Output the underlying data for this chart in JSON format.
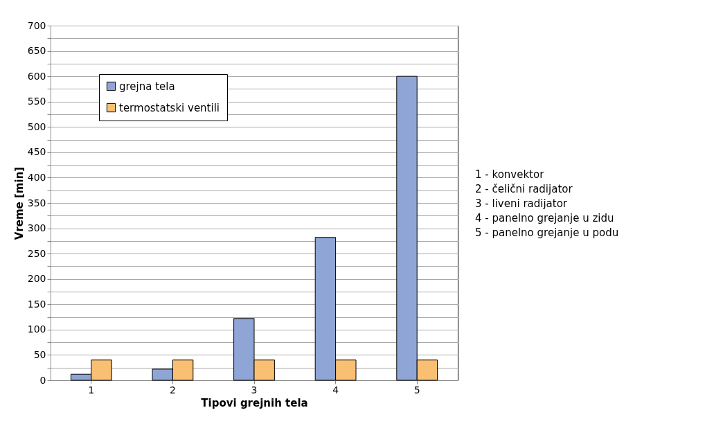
{
  "chart_data": {
    "type": "bar",
    "xlabel": "Tipovi grejnih tela",
    "ylabel": "Vreme [min]",
    "categories": [
      "1",
      "2",
      "3",
      "4",
      "5"
    ],
    "series": [
      {
        "name": "grejna tela",
        "color": "#8ea5d6",
        "values": [
          12,
          22,
          122,
          282,
          600
        ]
      },
      {
        "name": "termostatski ventili",
        "color": "#f9c073",
        "values": [
          40,
          40,
          40,
          40,
          40
        ]
      }
    ],
    "ylim": [
      0,
      700
    ],
    "yticks": [
      0,
      {
        "value": 25,
        "label": null
      },
      50,
      {
        "value": 75,
        "label": null
      },
      100,
      {
        "value": 125,
        "label": null
      },
      150,
      {
        "value": 175,
        "label": null
      },
      200,
      {
        "value": 225,
        "label": null
      },
      250,
      {
        "value": 275,
        "label": null
      },
      300,
      {
        "value": 325,
        "label": null
      },
      350,
      {
        "value": 375,
        "label": null
      },
      400,
      {
        "value": 425,
        "label": null
      },
      450,
      {
        "value": 475,
        "label": null
      },
      500,
      {
        "value": 525,
        "label": null
      },
      550,
      {
        "value": 575,
        "label": null
      },
      600,
      {
        "value": 625,
        "label": null
      },
      650,
      {
        "value": 675,
        "label": null
      },
      700
    ],
    "grid": "y",
    "legend": "top left",
    "annotations": [
      "1 - konvektor",
      "2 - čelični radijator",
      "3 - liveni radijator",
      "4 - panelno grejanje u zidu",
      "5 - panelno grejanje u podu"
    ]
  }
}
